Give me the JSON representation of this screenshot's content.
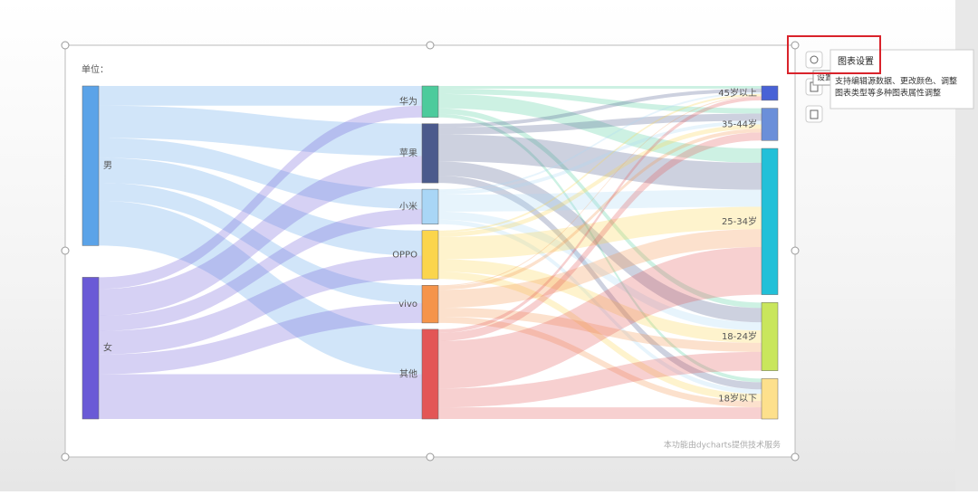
{
  "ui": {
    "unit": "单位：",
    "footer": "本功能由dycharts提供技术服务",
    "tooltip_title": "图表设置",
    "settings_label": "设置",
    "tooltip_text": [
      "支持编辑源数据、更改颜色、调整",
      "图表类型等多种图表属性调整"
    ]
  },
  "chart_data": {
    "type": "sankey",
    "nodes": [
      {
        "name": "男",
        "color": "#5ba3e8",
        "column": 0
      },
      {
        "name": "女",
        "color": "#6a5ad6",
        "column": 0
      },
      {
        "name": "华为",
        "color": "#4ccb9c",
        "column": 1
      },
      {
        "name": "苹果",
        "color": "#4b5a8c",
        "column": 1
      },
      {
        "name": "小米",
        "color": "#a9d6f6",
        "column": 1
      },
      {
        "name": "OPPO",
        "color": "#fbd54c",
        "column": 1
      },
      {
        "name": "vivo",
        "color": "#f5944a",
        "column": 1
      },
      {
        "name": "其他",
        "color": "#e35656",
        "column": 1
      },
      {
        "name": "45岁以上",
        "color": "#4862d6",
        "column": 2
      },
      {
        "name": "35-44岁",
        "color": "#6b8fd9",
        "column": 2
      },
      {
        "name": "25-34岁",
        "color": "#22c0d8",
        "column": 2
      },
      {
        "name": "18-24岁",
        "color": "#c9e65c",
        "column": 2
      },
      {
        "name": "18岁以下",
        "color": "#fde08c",
        "column": 2
      }
    ],
    "links": [
      {
        "source": "男",
        "target": "华为",
        "value": 22
      },
      {
        "source": "男",
        "target": "苹果",
        "value": 36
      },
      {
        "source": "男",
        "target": "小米",
        "value": 22
      },
      {
        "source": "男",
        "target": "OPPO",
        "value": 28
      },
      {
        "source": "男",
        "target": "vivo",
        "value": 20
      },
      {
        "source": "男",
        "target": "其他",
        "value": 50
      },
      {
        "source": "女",
        "target": "华为",
        "value": 13
      },
      {
        "source": "女",
        "target": "苹果",
        "value": 30
      },
      {
        "source": "女",
        "target": "小米",
        "value": 17
      },
      {
        "source": "女",
        "target": "OPPO",
        "value": 26
      },
      {
        "source": "女",
        "target": "vivo",
        "value": 22
      },
      {
        "source": "女",
        "target": "其他",
        "value": 50
      },
      {
        "source": "华为",
        "target": "45岁以上",
        "value": 3
      },
      {
        "source": "华为",
        "target": "35-44岁",
        "value": 6
      },
      {
        "source": "华为",
        "target": "25-34岁",
        "value": 16
      },
      {
        "source": "华为",
        "target": "18-24岁",
        "value": 6
      },
      {
        "source": "华为",
        "target": "18岁以下",
        "value": 4
      },
      {
        "source": "苹果",
        "target": "45岁以上",
        "value": 4
      },
      {
        "source": "苹果",
        "target": "35-44岁",
        "value": 8
      },
      {
        "source": "苹果",
        "target": "25-34岁",
        "value": 30
      },
      {
        "source": "苹果",
        "target": "18-24岁",
        "value": 16
      },
      {
        "source": "苹果",
        "target": "18岁以下",
        "value": 8
      },
      {
        "source": "小米",
        "target": "45岁以上",
        "value": 2
      },
      {
        "source": "小米",
        "target": "35-44岁",
        "value": 4
      },
      {
        "source": "小米",
        "target": "25-34岁",
        "value": 19
      },
      {
        "source": "小米",
        "target": "18-24岁",
        "value": 9
      },
      {
        "source": "小米",
        "target": "18岁以下",
        "value": 5
      },
      {
        "source": "OPPO",
        "target": "45岁以上",
        "value": 2
      },
      {
        "source": "OPPO",
        "target": "35-44岁",
        "value": 5
      },
      {
        "source": "OPPO",
        "target": "25-34岁",
        "value": 25
      },
      {
        "source": "OPPO",
        "target": "18-24岁",
        "value": 14
      },
      {
        "source": "OPPO",
        "target": "18岁以下",
        "value": 8
      },
      {
        "source": "vivo",
        "target": "45岁以上",
        "value": 1
      },
      {
        "source": "vivo",
        "target": "35-44岁",
        "value": 4
      },
      {
        "source": "vivo",
        "target": "25-34岁",
        "value": 20
      },
      {
        "source": "vivo",
        "target": "18-24岁",
        "value": 10
      },
      {
        "source": "vivo",
        "target": "18岁以下",
        "value": 7
      },
      {
        "source": "其他",
        "target": "45岁以上",
        "value": 4
      },
      {
        "source": "其他",
        "target": "35-44岁",
        "value": 9
      },
      {
        "source": "其他",
        "target": "25-34岁",
        "value": 53
      },
      {
        "source": "其他",
        "target": "18-24岁",
        "value": 21
      },
      {
        "source": "其他",
        "target": "18岁以下",
        "value": 13
      }
    ]
  }
}
